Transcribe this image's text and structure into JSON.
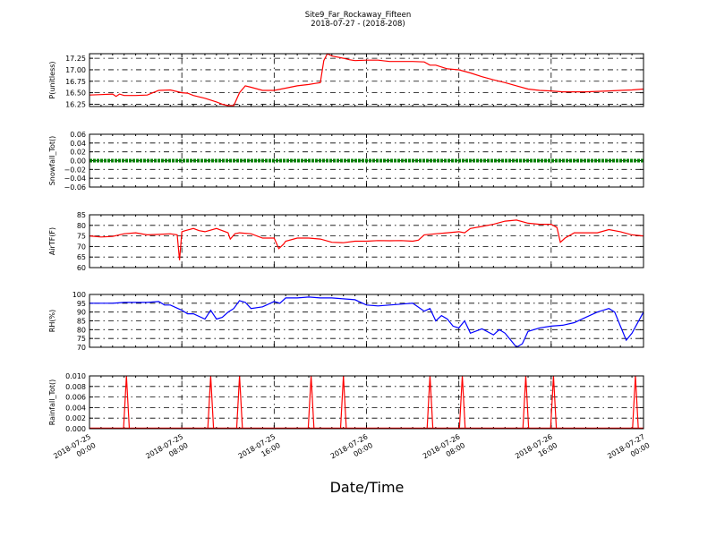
{
  "chart_data": {
    "type": "line",
    "title": "Site9_Far_Rockaway_Fifteen",
    "subtitle": "2018-07-27 - (2018-208)",
    "xlabel": "Date/Time",
    "x_range_hours": [
      0,
      48
    ],
    "x_ticks": [
      {
        "hour": 0,
        "line1": "2018-07-25",
        "line2": "00:00"
      },
      {
        "hour": 8,
        "line1": "2018-07-25",
        "line2": "08:00"
      },
      {
        "hour": 16,
        "line1": "2018-07-25",
        "line2": "16:00"
      },
      {
        "hour": 24,
        "line1": "2018-07-26",
        "line2": "00:00"
      },
      {
        "hour": 32,
        "line1": "2018-07-26",
        "line2": "08:00"
      },
      {
        "hour": 40,
        "line1": "2018-07-26",
        "line2": "16:00"
      },
      {
        "hour": 48,
        "line1": "2018-07-27",
        "line2": "00:00"
      }
    ],
    "panels": [
      {
        "id": "p",
        "ylabel": "P(unitless)",
        "color": "#ff0000",
        "ylim": [
          16.2,
          17.35
        ],
        "yticks": [
          16.25,
          16.5,
          16.75,
          17.0,
          17.25
        ],
        "ytick_labels": [
          "16.25",
          "16.50",
          "16.75",
          "17.00",
          "17.25"
        ],
        "x": [
          0,
          1,
          2,
          2.3,
          2.6,
          3,
          4,
          5,
          5.5,
          6,
          7,
          8,
          8.5,
          9,
          10,
          11,
          11.5,
          12,
          12.5,
          13,
          13.5,
          14,
          15,
          16,
          17,
          18,
          19,
          19.5,
          20,
          20.3,
          20.6,
          21,
          22,
          22.5,
          23,
          24,
          25,
          26,
          27,
          28,
          29,
          29.5,
          30,
          31,
          32,
          33,
          34,
          35,
          36,
          37,
          38,
          39,
          40,
          41,
          42,
          43,
          44,
          45,
          46,
          47,
          48
        ],
        "y": [
          16.45,
          16.46,
          16.47,
          16.42,
          16.47,
          16.44,
          16.44,
          16.45,
          16.5,
          16.55,
          16.56,
          16.5,
          16.49,
          16.44,
          16.38,
          16.3,
          16.25,
          16.22,
          16.22,
          16.5,
          16.65,
          16.62,
          16.55,
          16.55,
          16.6,
          16.65,
          16.68,
          16.7,
          16.72,
          17.2,
          17.35,
          17.3,
          17.25,
          17.22,
          17.2,
          17.21,
          17.21,
          17.18,
          17.18,
          17.18,
          17.17,
          17.1,
          17.1,
          17.02,
          17.0,
          16.93,
          16.85,
          16.78,
          16.72,
          16.65,
          16.58,
          16.55,
          16.54,
          16.52,
          16.52,
          16.52,
          16.53,
          16.54,
          16.55,
          16.56,
          16.58
        ]
      },
      {
        "id": "snow",
        "ylabel": "Snowfall_Tot()",
        "color": "#008000",
        "ylim": [
          -0.06,
          0.06
        ],
        "yticks": [
          -0.06,
          -0.04,
          -0.02,
          0.0,
          0.02,
          0.04,
          0.06
        ],
        "ytick_labels": [
          "−0.06",
          "−0.04",
          "−0.02",
          "0.00",
          "0.02",
          "0.04",
          "0.06"
        ],
        "x": [
          0,
          48
        ],
        "y": [
          0,
          0
        ]
      },
      {
        "id": "air",
        "ylabel": "AirTF(F)",
        "color": "#ff0000",
        "ylim": [
          60,
          85
        ],
        "yticks": [
          60,
          65,
          70,
          75,
          80,
          85
        ],
        "ytick_labels": [
          "60",
          "65",
          "70",
          "75",
          "80",
          "85"
        ],
        "x": [
          0,
          1,
          2,
          3,
          4,
          5,
          6,
          7,
          7.6,
          7.8,
          8.0,
          8.3,
          9,
          9.5,
          10,
          11,
          12,
          12.2,
          12.6,
          13,
          14,
          15,
          16,
          16.4,
          16.8,
          17,
          18,
          19,
          20,
          21,
          22,
          23,
          24,
          25,
          26,
          27,
          28,
          28.5,
          29,
          30,
          31,
          32,
          32.5,
          33,
          34,
          35,
          36,
          37,
          38,
          39,
          40,
          40.5,
          40.8,
          41.2,
          42,
          43,
          44,
          45,
          46,
          47,
          48
        ],
        "y": [
          75,
          74.5,
          74.8,
          76,
          76.5,
          75.5,
          75.7,
          76,
          75.5,
          63.5,
          77,
          77.5,
          78.5,
          77.5,
          77,
          78.5,
          76.5,
          73.5,
          76,
          76.5,
          76,
          74,
          74,
          69,
          71,
          72.5,
          74,
          74,
          73.5,
          72,
          71.8,
          72.5,
          72.5,
          72.8,
          72.7,
          72.8,
          72.5,
          73,
          75.5,
          76,
          76.5,
          77,
          76.5,
          78.5,
          79.5,
          80.5,
          82,
          82.5,
          81,
          80.5,
          80.5,
          79,
          72,
          74,
          76.5,
          76.5,
          76.5,
          78,
          77,
          75.5,
          75
        ]
      },
      {
        "id": "rh",
        "ylabel": "RH(%)",
        "color": "#0000ff",
        "ylim": [
          70,
          100
        ],
        "yticks": [
          70,
          75,
          80,
          85,
          90,
          95,
          100
        ],
        "ytick_labels": [
          "70",
          "75",
          "80",
          "85",
          "90",
          "95",
          "100"
        ],
        "x": [
          0,
          1,
          2,
          3,
          4,
          5,
          6,
          6.5,
          7,
          8,
          8.5,
          9,
          10,
          10.5,
          11,
          11.5,
          12,
          12.5,
          13,
          13.5,
          14,
          15,
          16,
          16.5,
          17,
          18,
          19,
          20,
          21,
          22,
          23,
          24,
          25,
          26,
          27,
          28,
          29,
          29.5,
          30,
          30.5,
          31,
          31.5,
          32,
          32.5,
          33,
          34,
          35,
          35.5,
          36,
          36.5,
          37,
          37.5,
          38,
          39,
          40,
          41,
          42,
          43,
          44,
          44.5,
          45,
          45.5,
          46,
          46.5,
          47,
          48
        ],
        "y": [
          95,
          95,
          95,
          95.5,
          95.5,
          95.5,
          96,
          94,
          94,
          91,
          89,
          89,
          86,
          91,
          86,
          87,
          90,
          92,
          96.5,
          95.5,
          92,
          93,
          96,
          95,
          98,
          98,
          98.5,
          98,
          98,
          97.5,
          97,
          94,
          93.5,
          94,
          94.5,
          95,
          90.5,
          92,
          85,
          88,
          86,
          82,
          81,
          85,
          78,
          80.5,
          77,
          80,
          78,
          74,
          70,
          72,
          79,
          81,
          82,
          82.5,
          84,
          87,
          90,
          91,
          92,
          90,
          82,
          74,
          78,
          90
        ]
      },
      {
        "id": "rain",
        "ylabel": "Rainfall_Tot()",
        "color": "#ff0000",
        "ylim": [
          0,
          0.01
        ],
        "yticks": [
          0.0,
          0.002,
          0.004,
          0.006,
          0.008,
          0.01
        ],
        "ytick_labels": [
          "0.000",
          "0.002",
          "0.004",
          "0.006",
          "0.008",
          "0.010"
        ],
        "spikes_hours": [
          3.2,
          10.5,
          13.0,
          19.2,
          22.0,
          29.5,
          32.3,
          37.8,
          40.2,
          47.3
        ],
        "spike_value": 0.01
      }
    ]
  }
}
